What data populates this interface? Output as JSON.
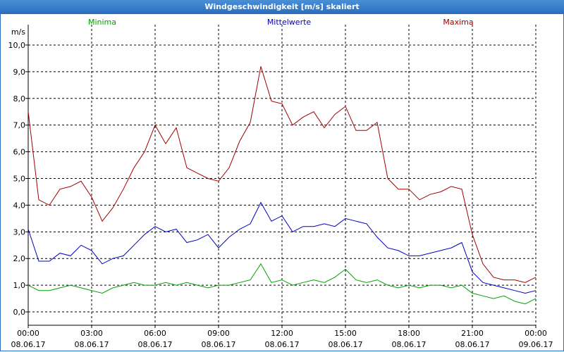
{
  "window": {
    "title": "Windgeschwindigkeit [m/s] skaliert"
  },
  "chart_data": {
    "type": "line",
    "title": "Windgeschwindigkeit [m/s] skaliert",
    "ylabel": "m/s",
    "ylim": [
      -0.5,
      10.5
    ],
    "xlim": [
      0,
      24
    ],
    "grid": true,
    "yticks": [
      "0,0",
      "1,0",
      "2,0",
      "3,0",
      "4,0",
      "5,0",
      "6,0",
      "7,0",
      "8,0",
      "9,0",
      "10,0"
    ],
    "xticks": [
      {
        "time": "00:00",
        "date": "08.06.17"
      },
      {
        "time": "03:00",
        "date": "08.06.17"
      },
      {
        "time": "06:00",
        "date": "08.06.17"
      },
      {
        "time": "09:00",
        "date": "08.06.17"
      },
      {
        "time": "12:00",
        "date": "08.06.17"
      },
      {
        "time": "15:00",
        "date": "08.06.17"
      },
      {
        "time": "18:00",
        "date": "08.06.17"
      },
      {
        "time": "21:00",
        "date": "08.06.17"
      },
      {
        "time": "00:00",
        "date": "09.06.17"
      }
    ],
    "x_hours": [
      0,
      0.5,
      1,
      1.5,
      2,
      2.5,
      3,
      3.5,
      4,
      4.5,
      5,
      5.5,
      6,
      6.5,
      7,
      7.5,
      8,
      8.5,
      9,
      9.5,
      10,
      10.5,
      11,
      11.5,
      12,
      12.5,
      13,
      13.5,
      14,
      14.5,
      15,
      15.5,
      16,
      16.5,
      17,
      17.5,
      18,
      18.5,
      19,
      19.5,
      20,
      20.5,
      21,
      21.5,
      22,
      22.5,
      23,
      23.5,
      24
    ],
    "series": [
      {
        "name": "Minima",
        "color": "#00a000",
        "values": [
          1.0,
          0.8,
          0.8,
          0.9,
          1.0,
          0.9,
          0.8,
          0.7,
          0.9,
          1.0,
          1.1,
          1.0,
          1.0,
          1.1,
          1.0,
          1.1,
          1.0,
          0.9,
          1.0,
          1.0,
          1.1,
          1.2,
          1.8,
          1.1,
          1.2,
          1.0,
          1.1,
          1.2,
          1.1,
          1.3,
          1.6,
          1.2,
          1.1,
          1.2,
          1.0,
          0.9,
          1.0,
          0.9,
          1.0,
          1.0,
          0.9,
          1.0,
          0.7,
          0.6,
          0.5,
          0.6,
          0.4,
          0.3,
          0.5
        ]
      },
      {
        "name": "Mittelwerte",
        "color": "#0000c0",
        "values": [
          3.1,
          1.9,
          1.9,
          2.2,
          2.1,
          2.5,
          2.3,
          1.8,
          2.0,
          2.1,
          2.5,
          2.9,
          3.2,
          3.0,
          3.1,
          2.6,
          2.7,
          2.9,
          2.4,
          2.8,
          3.1,
          3.3,
          4.1,
          3.4,
          3.6,
          3.0,
          3.2,
          3.2,
          3.3,
          3.2,
          3.5,
          3.4,
          3.3,
          2.8,
          2.4,
          2.3,
          2.1,
          2.1,
          2.2,
          2.3,
          2.4,
          2.6,
          1.5,
          1.1,
          1.0,
          0.9,
          0.8,
          0.7,
          0.8
        ]
      },
      {
        "name": "Maxima",
        "color": "#a00000",
        "values": [
          7.5,
          4.2,
          4.0,
          4.6,
          4.7,
          4.9,
          4.3,
          3.4,
          3.9,
          4.6,
          5.4,
          6.0,
          7.0,
          6.3,
          6.9,
          5.4,
          5.2,
          5.0,
          4.9,
          5.4,
          6.4,
          7.1,
          9.2,
          7.9,
          7.8,
          7.0,
          7.3,
          7.5,
          6.9,
          7.4,
          7.7,
          6.8,
          6.8,
          7.1,
          5.0,
          4.6,
          4.6,
          4.2,
          4.4,
          4.5,
          4.7,
          4.6,
          2.9,
          1.8,
          1.3,
          1.2,
          1.2,
          1.1,
          1.3
        ]
      }
    ]
  }
}
